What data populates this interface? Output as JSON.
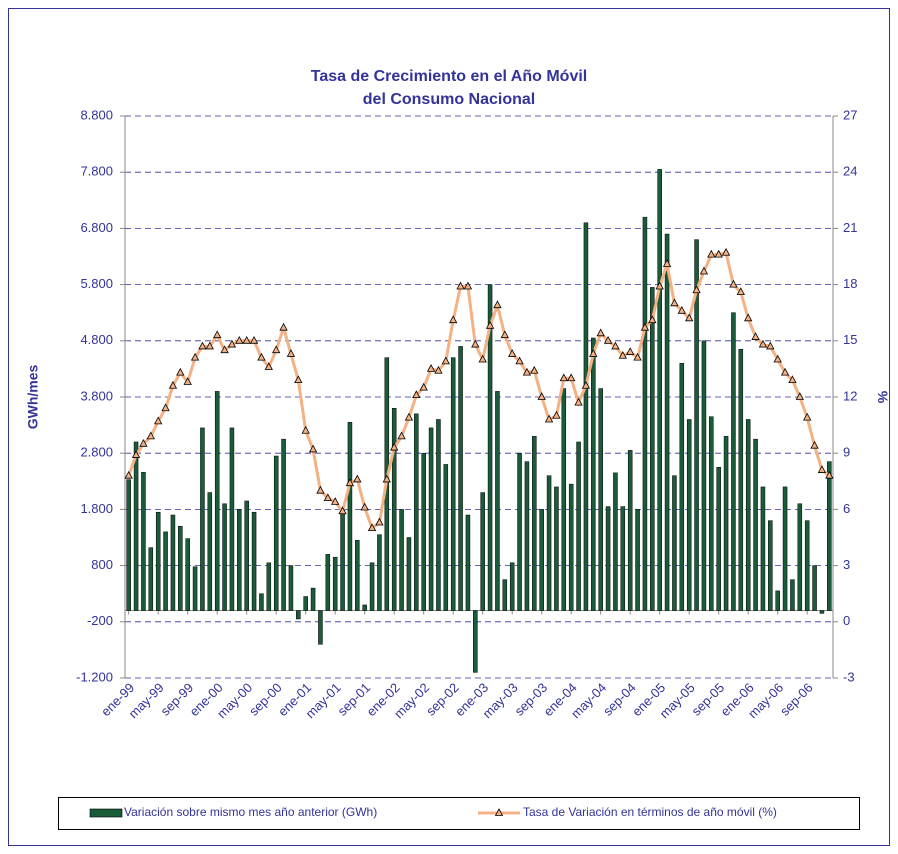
{
  "chart_data": {
    "type": "bar_line",
    "title": [
      "Tasa de Crecimiento en el Año Móvil",
      "del Consumo Nacional"
    ],
    "y_label": "GWh/mes",
    "y2_label": "%",
    "legend": "bottom",
    "grid": true,
    "categories": [
      "ene-99",
      null,
      null,
      null,
      "may-99",
      null,
      null,
      null,
      "sep-99",
      null,
      null,
      null,
      "ene-00",
      null,
      null,
      null,
      "may-00",
      null,
      null,
      null,
      "sep-00",
      null,
      null,
      null,
      "ene-01",
      null,
      null,
      null,
      "may-01",
      null,
      null,
      null,
      "sep-01",
      null,
      null,
      null,
      "ene-02",
      null,
      null,
      null,
      "may-02",
      null,
      null,
      null,
      "sep-02",
      null,
      null,
      null,
      "ene-03",
      null,
      null,
      null,
      "may-03",
      null,
      null,
      null,
      "sep-03",
      null,
      null,
      null,
      "ene-04",
      null,
      null,
      null,
      "may-04",
      null,
      null,
      null,
      "sep-04",
      null,
      null,
      null,
      "ene-05",
      null,
      null,
      null,
      "may-05",
      null,
      null,
      null,
      "sep-05",
      null,
      null,
      null,
      "ene-06",
      null,
      null,
      null,
      "may-06",
      null,
      null,
      null,
      "sep-06",
      null,
      null,
      null
    ],
    "series": [
      {
        "name": "Variación sobre mismo mes año anterior (GWh)",
        "type": "bar",
        "color": "#1a5c3a",
        "values": [
          2330,
          3000,
          2460,
          1120,
          1750,
          1400,
          1700,
          1500,
          1280,
          780,
          3250,
          2100,
          3900,
          1900,
          3250,
          1800,
          1950,
          1750,
          300,
          850,
          2750,
          3050,
          800,
          -150,
          250,
          400,
          -600,
          1000,
          950,
          1800,
          3350,
          1250,
          100,
          850,
          1350,
          4500,
          3600,
          1800,
          1300,
          3500,
          2800,
          3250,
          3400,
          2600,
          4500,
          4700,
          1700,
          -1100,
          2100,
          5800,
          3900,
          550,
          850,
          2800,
          2650,
          3100,
          1800,
          2400,
          2200,
          3950,
          2250,
          3000,
          6900,
          4850,
          3950,
          1850,
          2450,
          1850,
          2850,
          1800,
          7000,
          5750,
          7850,
          6700,
          2400,
          4400,
          3400,
          6600,
          4800,
          3450,
          2550,
          3100,
          5300,
          4650,
          3400,
          3050,
          2200,
          1600,
          350,
          2200,
          550,
          1900,
          1600,
          800,
          -50,
          2650
        ]
      },
      {
        "name": "Tasa de Variación en términos de año móvil (%)",
        "type": "line",
        "axis": "y2",
        "color": "#f4b183",
        "values": [
          7.8,
          8.9,
          9.5,
          9.9,
          10.7,
          11.4,
          12.6,
          13.3,
          12.8,
          14.1,
          14.7,
          14.7,
          15.3,
          14.5,
          14.8,
          15.0,
          15.0,
          15.0,
          14.1,
          13.6,
          14.5,
          15.7,
          14.3,
          12.9,
          10.2,
          9.2,
          7.0,
          6.6,
          6.4,
          5.9,
          7.4,
          7.6,
          6.1,
          5.0,
          5.3,
          7.6,
          9.3,
          9.9,
          10.9,
          12.1,
          12.5,
          13.5,
          13.4,
          13.9,
          16.1,
          17.9,
          17.9,
          14.8,
          14.0,
          15.8,
          16.9,
          15.3,
          14.3,
          13.9,
          13.3,
          13.4,
          12.0,
          10.8,
          11.0,
          13.0,
          13.0,
          11.7,
          12.6,
          14.3,
          15.4,
          15.0,
          14.7,
          14.2,
          14.4,
          14.1,
          15.7,
          16.1,
          17.9,
          19.1,
          17.0,
          16.6,
          16.2,
          17.7,
          18.7,
          19.6,
          19.6,
          19.7,
          18.0,
          17.6,
          16.2,
          15.2,
          14.8,
          14.7,
          14.0,
          13.3,
          12.9,
          12.0,
          10.9,
          9.4,
          8.1,
          7.8
        ]
      }
    ],
    "ylim": [
      -1200,
      8800
    ],
    "yticks": [
      {
        "value": -1200,
        "label": "-1.200"
      },
      {
        "value": -200,
        "label": "-200"
      },
      {
        "value": 800,
        "label": "800"
      },
      {
        "value": 1800,
        "label": "1.800"
      },
      {
        "value": 2800,
        "label": "2.800"
      },
      {
        "value": 3800,
        "label": "3.800"
      },
      {
        "value": 4800,
        "label": "4.800"
      },
      {
        "value": 5800,
        "label": "5.800"
      },
      {
        "value": 6800,
        "label": "6.800"
      },
      {
        "value": 7800,
        "label": "7.800"
      },
      {
        "value": 8800,
        "label": "8.800"
      }
    ],
    "y2lim": [
      -3,
      27
    ],
    "y2ticks": [
      -3,
      0,
      3,
      6,
      9,
      12,
      15,
      18,
      21,
      24,
      27
    ]
  }
}
